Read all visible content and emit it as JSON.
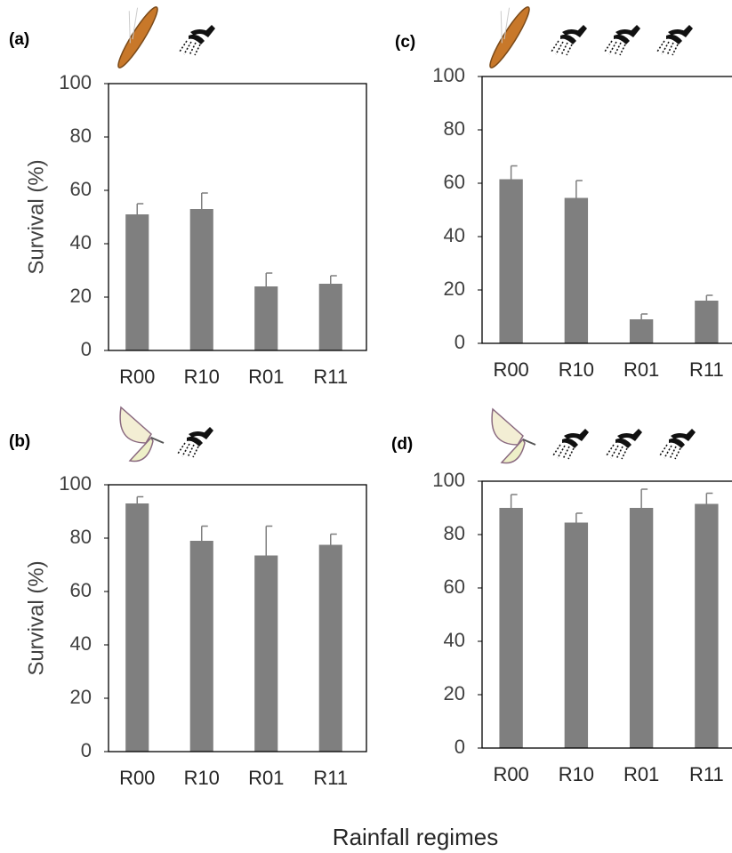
{
  "chart_data": [
    {
      "type": "bar",
      "panel_label": "(a)",
      "ylabel": "Survival (%)",
      "categories": [
        "R00",
        "R10",
        "R01",
        "R11"
      ],
      "values": [
        51,
        53,
        24,
        25
      ],
      "errors": [
        4,
        6,
        5,
        3
      ],
      "color": "#7f7f7f",
      "ylim": [
        0,
        100
      ],
      "yticks": [
        0,
        20,
        40,
        60,
        80,
        100
      ]
    },
    {
      "type": "bar",
      "panel_label": "(b)",
      "ylabel": "Survival (%)",
      "categories": [
        "R00",
        "R10",
        "R01",
        "R11"
      ],
      "values": [
        93,
        79,
        73.5,
        77.5
      ],
      "errors": [
        2.5,
        5.5,
        11,
        4
      ],
      "color": "#7f7f7f",
      "ylim": [
        0,
        100
      ],
      "yticks": [
        0,
        20,
        40,
        60,
        80,
        100
      ]
    },
    {
      "type": "bar",
      "panel_label": "(c)",
      "categories": [
        "R00",
        "R10",
        "R01",
        "R11"
      ],
      "values": [
        61.5,
        54.5,
        9,
        16
      ],
      "errors": [
        5,
        6.5,
        2,
        2
      ],
      "color": "#7f7f7f",
      "ylim": [
        0,
        100
      ],
      "yticks": [
        0,
        20,
        40,
        60,
        80,
        100
      ]
    },
    {
      "type": "bar",
      "panel_label": "(d)",
      "categories": [
        "R00",
        "R10",
        "R01",
        "R11"
      ],
      "values": [
        90,
        84.5,
        90,
        91.5
      ],
      "errors": [
        5,
        3.5,
        7,
        4
      ],
      "color": "#7f7f7f",
      "ylim": [
        0,
        100
      ],
      "yticks": [
        0,
        20,
        40,
        60,
        80,
        100
      ]
    }
  ],
  "x_label": "Rainfall regimes"
}
